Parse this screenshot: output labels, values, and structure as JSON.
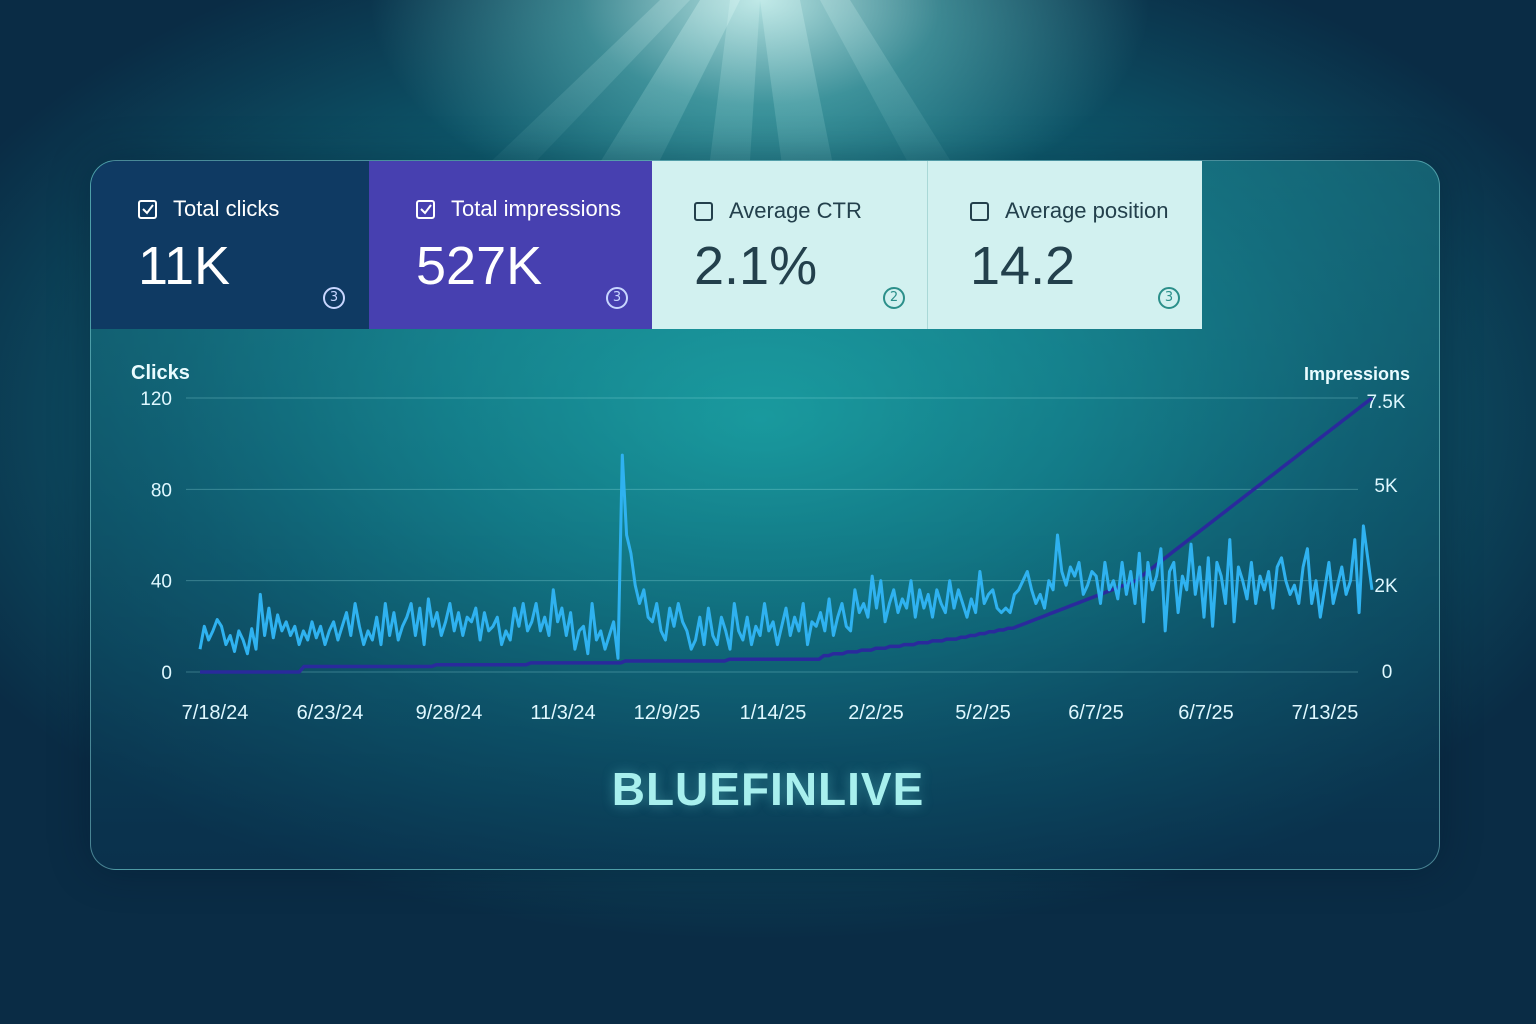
{
  "metrics": [
    {
      "label": "Total clicks",
      "value": "11K",
      "checked": true,
      "help": "3",
      "bg": "#0f3a63"
    },
    {
      "label": "Total impressions",
      "value": "527K",
      "checked": true,
      "help": "3",
      "bg": "#4740b0"
    },
    {
      "label": "Average CTR",
      "value": "2.1%",
      "checked": false,
      "help": "2",
      "bg": "#d2f1f0"
    },
    {
      "label": "Average position",
      "value": "14.2",
      "checked": false,
      "help": "3",
      "bg": "#d2f1f0"
    }
  ],
  "brand": "BLUEFINLIVE",
  "chart_data": {
    "type": "line",
    "ylabel_left": "Clicks",
    "ylabel_right": "Impressions",
    "yticks_left": [
      "120",
      "80",
      "40",
      "0"
    ],
    "yticks_right": [
      "7.5K",
      "5K",
      "2K",
      "0"
    ],
    "ylim_left": [
      0,
      120
    ],
    "ylim_right": [
      0,
      7500
    ],
    "x_labels": [
      "7/18/24",
      "6/23/24",
      "9/28/24",
      "11/3/24",
      "12/9/25",
      "1/14/25",
      "2/2/25",
      "5/2/25",
      "6/7/25",
      "6/7/25",
      "7/13/25"
    ],
    "grid": true,
    "series": [
      {
        "name": "Clicks",
        "axis": "left",
        "color": "#2fb2f0",
        "values": [
          10,
          20,
          14,
          18,
          23,
          20,
          12,
          16,
          9,
          18,
          14,
          8,
          19,
          10,
          34,
          16,
          28,
          15,
          25,
          18,
          22,
          16,
          20,
          12,
          18,
          14,
          22,
          15,
          20,
          12,
          18,
          22,
          14,
          20,
          26,
          16,
          30,
          20,
          12,
          18,
          14,
          24,
          12,
          30,
          16,
          26,
          14,
          20,
          24,
          30,
          16,
          28,
          12,
          32,
          20,
          26,
          16,
          22,
          30,
          18,
          26,
          16,
          24,
          22,
          28,
          14,
          26,
          18,
          20,
          24,
          12,
          18,
          14,
          28,
          20,
          30,
          18,
          22,
          30,
          18,
          24,
          16,
          36,
          22,
          28,
          16,
          26,
          10,
          18,
          20,
          8,
          30,
          14,
          18,
          10,
          16,
          22,
          6,
          95,
          60,
          52,
          38,
          30,
          36,
          24,
          22,
          30,
          18,
          14,
          28,
          20,
          30,
          22,
          18,
          10,
          14,
          24,
          12,
          28,
          16,
          12,
          24,
          18,
          10,
          30,
          18,
          14,
          24,
          12,
          20,
          16,
          30,
          18,
          22,
          12,
          20,
          28,
          16,
          24,
          18,
          30,
          12,
          22,
          20,
          26,
          18,
          32,
          16,
          24,
          30,
          20,
          18,
          36,
          26,
          30,
          24,
          42,
          28,
          40,
          22,
          30,
          36,
          26,
          32,
          28,
          40,
          24,
          36,
          28,
          34,
          24,
          36,
          30,
          26,
          40,
          28,
          36,
          30,
          24,
          32,
          26,
          44,
          30,
          34,
          36,
          28,
          26,
          28,
          26,
          34,
          36,
          40,
          44,
          36,
          30,
          34,
          28,
          40,
          36,
          60,
          44,
          38,
          46,
          42,
          48,
          34,
          38,
          44,
          42,
          30,
          48,
          36,
          40,
          32,
          48,
          34,
          44,
          30,
          52,
          22,
          48,
          36,
          42,
          54,
          18,
          44,
          48,
          26,
          42,
          36,
          56,
          34,
          46,
          24,
          50,
          20,
          48,
          42,
          30,
          58,
          22,
          46,
          40,
          32,
          48,
          30,
          42,
          36,
          44,
          28,
          46,
          50,
          40,
          34,
          38,
          30,
          46,
          54,
          30,
          40,
          24,
          36,
          48,
          30,
          38,
          46,
          34,
          40,
          58,
          26,
          64,
          50,
          36
        ],
        "note": "approximate readings of the light blue clicks line"
      },
      {
        "name": "Impressions",
        "axis": "right",
        "color": "#2a2a9c",
        "values": [
          0,
          0,
          0,
          0,
          0,
          0,
          0,
          0,
          0,
          0,
          0,
          0,
          0,
          0,
          0,
          0,
          0,
          0,
          0,
          0,
          0,
          0,
          150,
          150,
          150,
          150,
          150,
          150,
          150,
          150,
          150,
          150,
          150,
          150,
          150,
          150,
          150,
          150,
          150,
          150,
          150,
          150,
          150,
          150,
          150,
          150,
          150,
          150,
          150,
          150,
          200,
          200,
          200,
          200,
          200,
          200,
          200,
          200,
          200,
          200,
          200,
          200,
          200,
          200,
          200,
          200,
          200,
          200,
          200,
          200,
          250,
          250,
          250,
          250,
          250,
          250,
          250,
          250,
          250,
          250,
          250,
          250,
          250,
          250,
          250,
          250,
          250,
          250,
          250,
          250,
          300,
          300,
          300,
          300,
          300,
          300,
          300,
          300,
          300,
          300,
          300,
          300,
          300,
          300,
          300,
          300,
          300,
          300,
          300,
          300,
          300,
          300,
          350,
          350,
          350,
          350,
          350,
          350,
          350,
          350,
          350,
          350,
          350,
          350,
          350,
          350,
          350,
          350,
          350,
          350,
          350,
          350,
          450,
          450,
          500,
          500,
          500,
          550,
          550,
          550,
          600,
          600,
          600,
          650,
          650,
          650,
          700,
          700,
          700,
          750,
          750,
          750,
          800,
          800,
          800,
          850,
          850,
          850,
          900,
          900,
          900,
          950,
          950,
          1000,
          1000,
          1050,
          1050,
          1100,
          1100,
          1150,
          1150,
          1200,
          1200,
          1250,
          1300,
          1350,
          1400,
          1450,
          1500,
          1550,
          1600,
          1650,
          1700,
          1750,
          1800,
          1850,
          1900,
          1950,
          2000,
          2050,
          2100,
          2150,
          2200,
          2250,
          2300,
          2350,
          2400,
          2450,
          2500,
          2600,
          2700,
          2800,
          2900,
          3000,
          3100,
          3200,
          3300,
          3400,
          3500,
          3600,
          3700,
          3800,
          3900,
          4000,
          4100,
          4200,
          4300,
          4400,
          4500,
          4600,
          4700,
          4800,
          4900,
          5000,
          5100,
          5200,
          5300,
          5400,
          5500,
          5600,
          5700,
          5800,
          5900,
          6000,
          6100,
          6200,
          6300,
          6400,
          6500,
          6600,
          6700,
          6800,
          6900,
          7000,
          7100,
          7200,
          7300,
          7400,
          7500
        ],
        "note": "approximate readings of the dark impressions line"
      }
    ]
  }
}
